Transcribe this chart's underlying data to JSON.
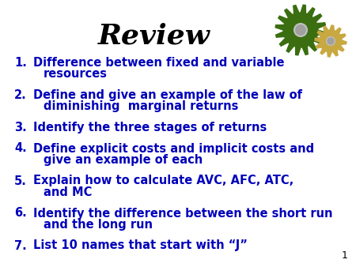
{
  "title": "Review",
  "title_fontsize": 26,
  "title_color": "#000000",
  "title_weight": "bold",
  "bg_color": "#ffffff",
  "text_color": "#0000bb",
  "list_fontsize": 10.5,
  "list_weight": "bold",
  "page_number": "1",
  "items": [
    [
      "Difference between fixed and variable",
      "resources"
    ],
    [
      "Define and give an example of the law of",
      "diminishing  marginal returns"
    ],
    [
      "Identify the three stages of returns"
    ],
    [
      "Define explicit costs and implicit costs and",
      "give an example of each"
    ],
    [
      "Explain how to calculate AVC, AFC, ATC,",
      "and MC"
    ],
    [
      "Identify the difference between the short run",
      "and the long run"
    ],
    [
      "List 10 names that start with “J”"
    ]
  ]
}
